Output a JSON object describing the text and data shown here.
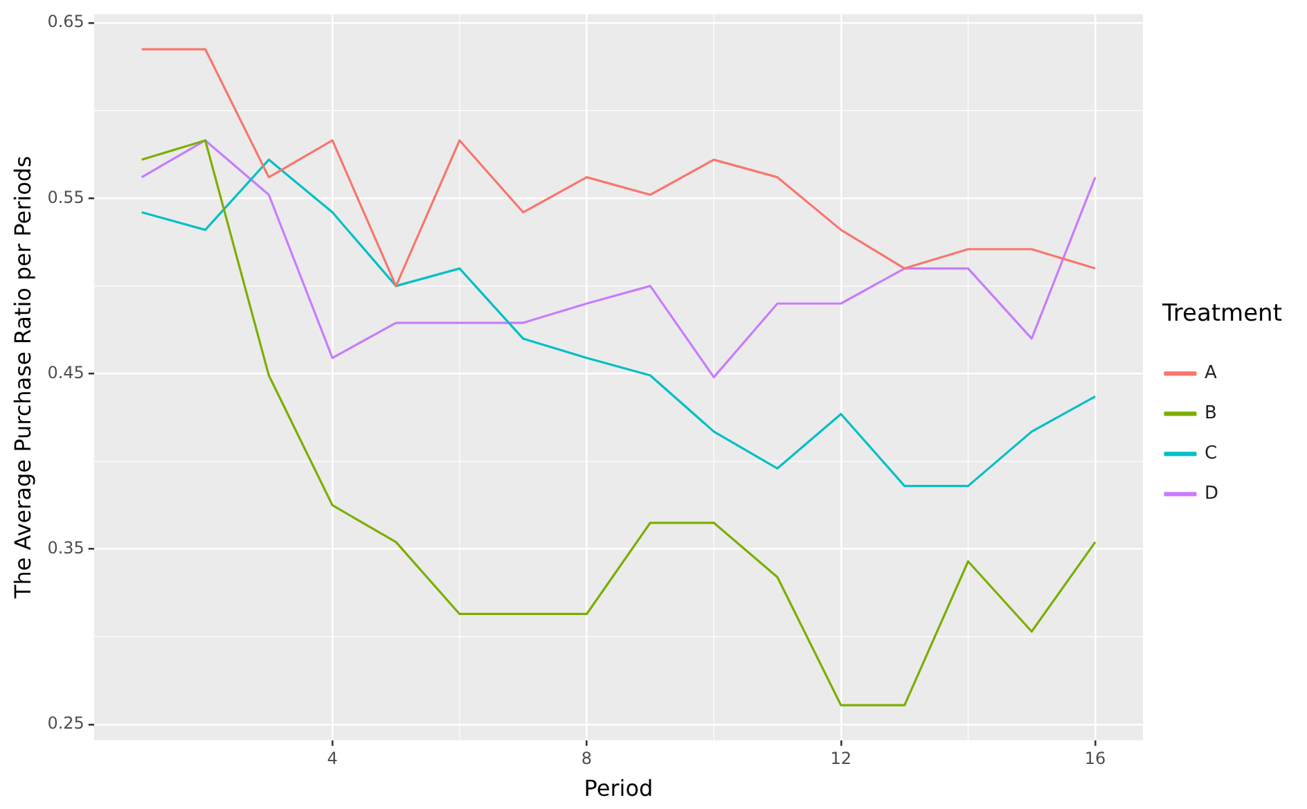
{
  "chart_data": {
    "type": "line",
    "xlabel": "Period",
    "ylabel": "The Average Purchase Ratio per Periods",
    "legend_title": "Treatment",
    "x": [
      1,
      2,
      3,
      4,
      5,
      6,
      7,
      8,
      9,
      10,
      11,
      12,
      13,
      14,
      15,
      16
    ],
    "series": [
      {
        "name": "A",
        "color": "#f8766d",
        "values": [
          0.635,
          0.635,
          0.562,
          0.583,
          0.5,
          0.583,
          0.542,
          0.562,
          0.552,
          0.572,
          0.562,
          0.532,
          0.51,
          0.521,
          0.521,
          0.51
        ]
      },
      {
        "name": "B",
        "color": "#7cae00",
        "values": [
          0.572,
          0.583,
          0.449,
          0.375,
          0.354,
          0.313,
          0.313,
          0.313,
          0.365,
          0.365,
          0.334,
          0.261,
          0.261,
          0.343,
          0.303,
          0.354
        ]
      },
      {
        "name": "C",
        "color": "#00bfc4",
        "values": [
          0.542,
          0.532,
          0.572,
          0.542,
          0.5,
          0.51,
          0.47,
          0.459,
          0.449,
          0.417,
          0.396,
          0.427,
          0.386,
          0.386,
          0.417,
          0.437
        ]
      },
      {
        "name": "D",
        "color": "#c77cff",
        "values": [
          0.562,
          0.583,
          0.552,
          0.459,
          0.479,
          0.479,
          0.479,
          0.49,
          0.5,
          0.448,
          0.49,
          0.49,
          0.51,
          0.51,
          0.47,
          0.562
        ]
      }
    ],
    "xlim": [
      0.25,
      16.75
    ],
    "xticks": [
      4,
      8,
      12,
      16
    ],
    "ylim": [
      0.241,
      0.655
    ],
    "yticks": [
      {
        "value": 0.25,
        "label": "0.25"
      },
      {
        "value": 0.35,
        "label": "0.35"
      },
      {
        "value": 0.45,
        "label": "0.45"
      },
      {
        "value": 0.55,
        "label": "0.55"
      },
      {
        "value": 0.65,
        "label": "0.65"
      }
    ],
    "grid": true,
    "legend": "right",
    "marker": "none",
    "line_style": "solid"
  }
}
